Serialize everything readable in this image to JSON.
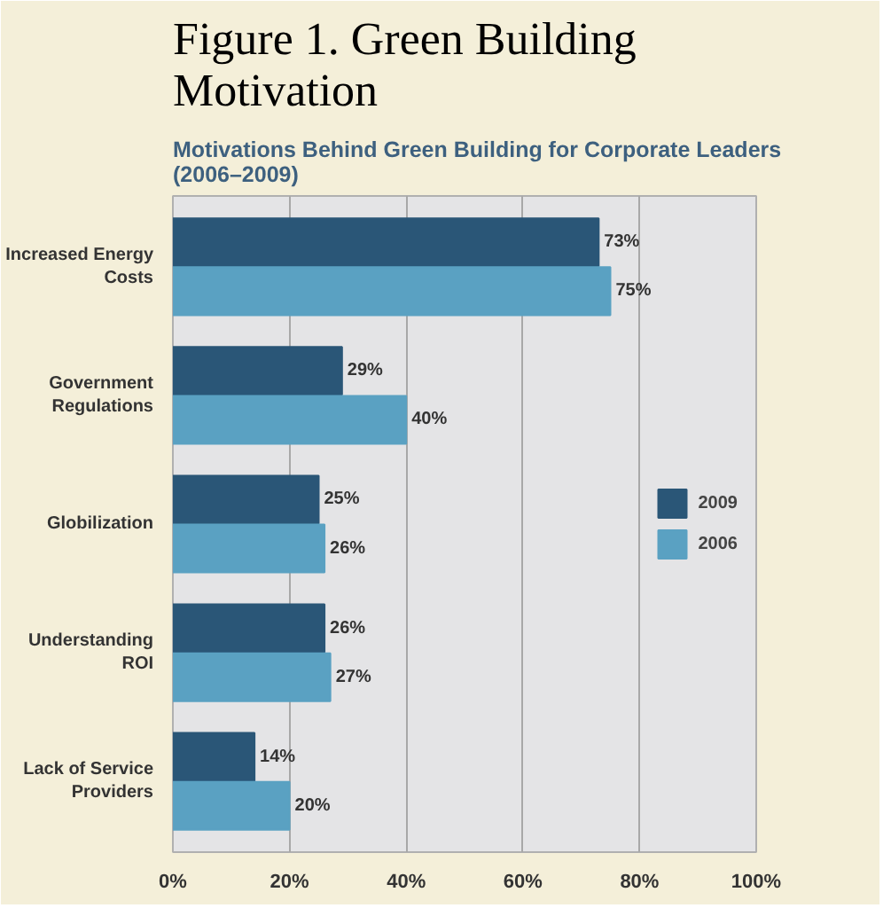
{
  "chart_data": {
    "type": "bar",
    "orientation": "horizontal",
    "title": "Figure 1. Green Building Motivation",
    "subtitle": "Motivations Behind Green Building for Corporate Leaders (2006–2009)",
    "categories": [
      "Increased Energy Costs",
      "Government Regulations",
      "Globilization",
      "Understanding ROI",
      "Lack of Service Providers"
    ],
    "series": [
      {
        "name": "2009",
        "color": "#2a5677",
        "values": [
          73,
          29,
          25,
          26,
          14
        ],
        "value_labels": [
          "73%",
          "29%",
          "25%",
          "26%",
          "14%"
        ]
      },
      {
        "name": "2006",
        "color": "#5aa1c2",
        "values": [
          75,
          40,
          26,
          27,
          20
        ],
        "value_labels": [
          "75%",
          "40%",
          "26%",
          "27%",
          "20%"
        ]
      }
    ],
    "xlim": [
      0,
      100
    ],
    "xticks": [
      {
        "value": 0,
        "label": "0%"
      },
      {
        "value": 20,
        "label": "20%"
      },
      {
        "value": 40,
        "label": "40%"
      },
      {
        "value": 60,
        "label": "60%"
      },
      {
        "value": 80,
        "label": "80%"
      },
      {
        "value": 100,
        "label": "100%"
      }
    ],
    "grid": "x",
    "legend": "right"
  }
}
